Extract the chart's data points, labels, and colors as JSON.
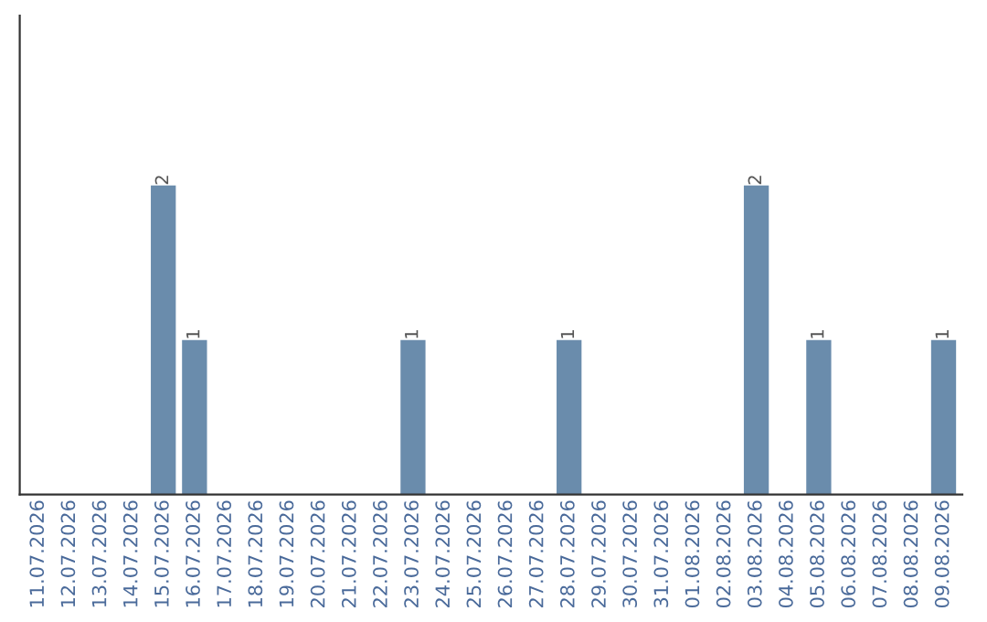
{
  "chart_data": {
    "type": "bar",
    "categories": [
      "11.07.2026",
      "12.07.2026",
      "13.07.2026",
      "14.07.2026",
      "15.07.2026",
      "16.07.2026",
      "17.07.2026",
      "18.07.2026",
      "19.07.2026",
      "20.07.2026",
      "21.07.2026",
      "22.07.2026",
      "23.07.2026",
      "24.07.2026",
      "25.07.2026",
      "26.07.2026",
      "27.07.2026",
      "28.07.2026",
      "29.07.2026",
      "30.07.2026",
      "31.07.2026",
      "01.08.2026",
      "02.08.2026",
      "03.08.2026",
      "04.08.2026",
      "05.08.2026",
      "06.08.2026",
      "07.08.2026",
      "08.08.2026",
      "09.08.2026"
    ],
    "values": [
      0,
      0,
      0,
      0,
      2,
      1,
      0,
      0,
      0,
      0,
      0,
      0,
      1,
      0,
      0,
      0,
      0,
      1,
      0,
      0,
      0,
      0,
      0,
      2,
      0,
      1,
      0,
      0,
      0,
      1
    ],
    "value_labels": [
      null,
      null,
      null,
      null,
      "2",
      "1",
      null,
      null,
      null,
      null,
      null,
      null,
      "1",
      null,
      null,
      null,
      null,
      "1",
      null,
      null,
      null,
      null,
      null,
      "2",
      null,
      "1",
      null,
      null,
      null,
      "1"
    ],
    "color": "#6a8cac",
    "tick_labels": "x",
    "grid": false,
    "legend": false
  }
}
